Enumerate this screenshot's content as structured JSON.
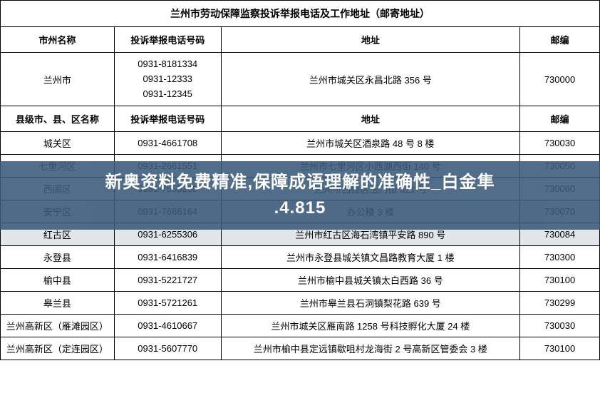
{
  "table": {
    "title": "兰州市劳动保障监察投诉举报电话及工作地址（邮寄地址）",
    "headers1": {
      "name": "市州名称",
      "phone": "投诉举报电话号码",
      "address": "地址",
      "zip": "邮编"
    },
    "city_row": {
      "name": "兰州市",
      "phone1": "0931-8181334",
      "phone2": "0931-12333",
      "phone3": "0931-12345",
      "address": "兰州市城关区永昌北路 356 号",
      "zip": "730000"
    },
    "headers2": {
      "name": "县级市、县、区名称",
      "phone": "投诉举报电话号码",
      "address": "地址",
      "zip": "邮编"
    },
    "rows": [
      {
        "name": "城关区",
        "phone": "0931-4661708",
        "address": "兰州市城关区酒泉路 48 号 8 楼",
        "zip": "730030"
      },
      {
        "name": "七里河区",
        "phone": "0931-2661551",
        "address": "兰州市七里河区小西湖西街 140 号",
        "zip": "730050"
      },
      {
        "name": "西固区",
        "phone": "0931-7555269",
        "address": "兰州市西固区玉门街 321 号",
        "zip": "730060"
      },
      {
        "name": "安宁区",
        "phone": "0931-7666164",
        "address": "办公楼 3 楼",
        "zip": "730070"
      },
      {
        "name": "红古区",
        "phone": "0931-6255306",
        "address": "兰州市红古区海石湾镇平安路 890 号",
        "zip": "730084"
      },
      {
        "name": "永登县",
        "phone": "0931-6416839",
        "address": "兰州市永登县城关镇文昌路教育大厦 1 楼",
        "zip": "730300"
      },
      {
        "name": "榆中县",
        "phone": "0931-5221727",
        "address": "兰州市榆中县城关镇太白西路 36 号",
        "zip": "730100"
      },
      {
        "name": "皋兰县",
        "phone": "0931-5721261",
        "address": "兰州市皋兰县石洞镇梨花路 639 号",
        "zip": "730299"
      },
      {
        "name": "兰州高新区（雁滩园区）",
        "phone": "0931-4610667",
        "address": "兰州市城关区雁南路 1258 号科技孵化大厦 24 楼",
        "zip": "730030"
      },
      {
        "name": "兰州高新区（定连园区）",
        "phone": "0931-5607770",
        "address": "兰州市榆中县定远镇歇咀村龙海街 2 号高新区管委会 3 楼",
        "zip": "730100"
      }
    ]
  },
  "overlay": {
    "line1": "新奥资料免费精准,保障成语理解的准确性_白金隼",
    "line2": ".4.815"
  },
  "style": {
    "overlay_bg": "#3a5a7a",
    "overlay_text_color": "#ffffff",
    "border_color": "#000000",
    "background_color": "#ffffff"
  }
}
